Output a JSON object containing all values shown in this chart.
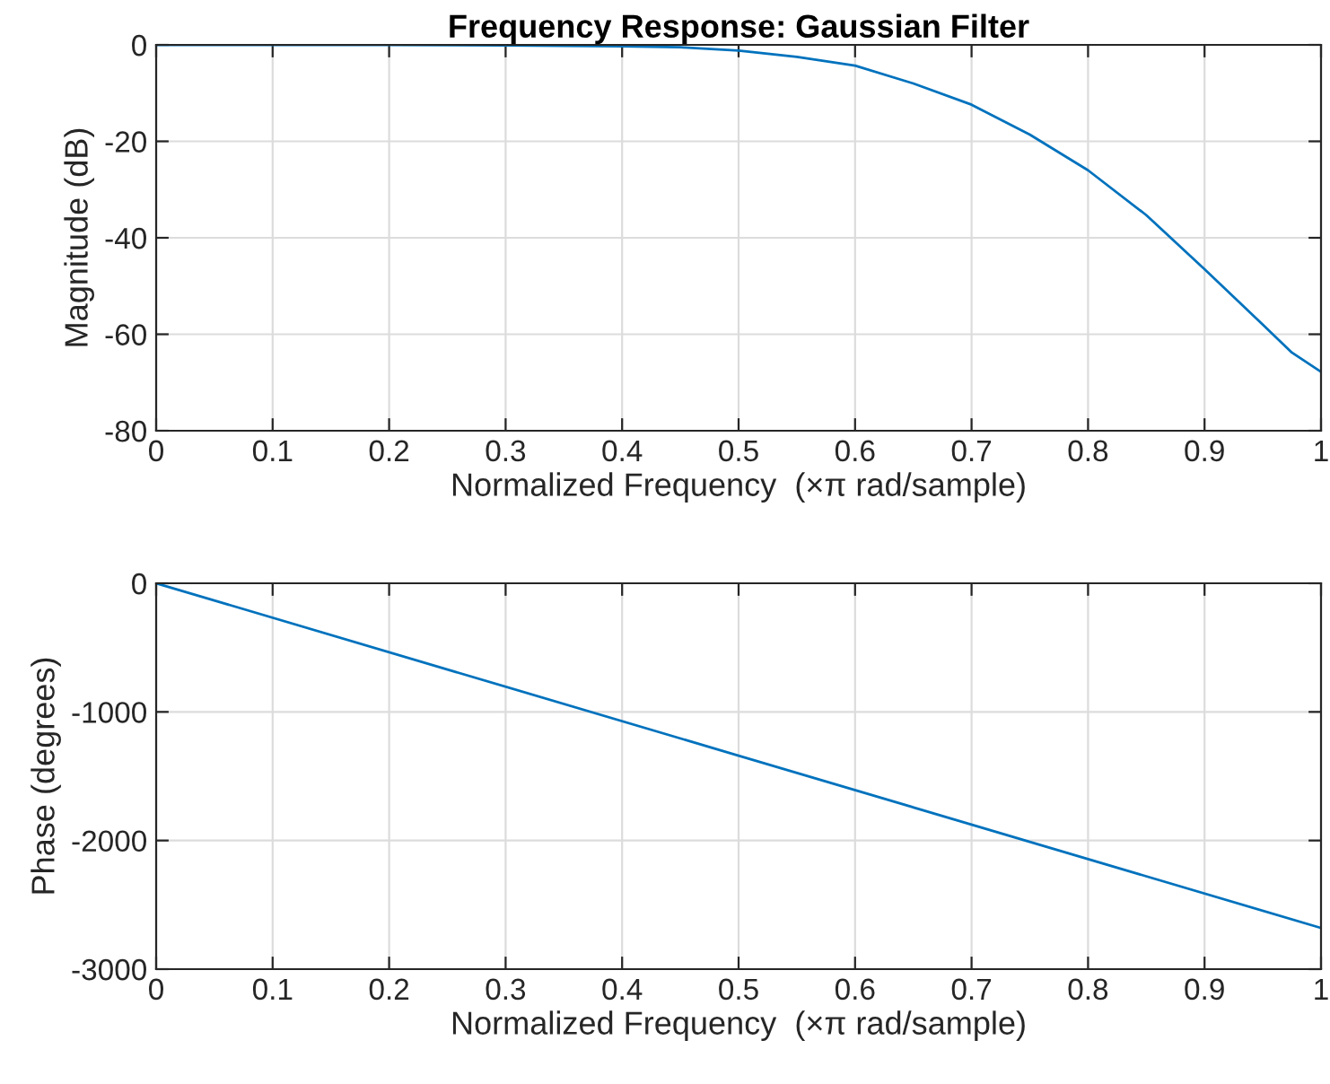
{
  "chart_data": [
    {
      "type": "line",
      "title": "Frequency Response: Gaussian Filter",
      "xlabel": "Normalized Frequency  (×π rad/sample)",
      "ylabel": "Magnitude (dB)",
      "x": [
        0,
        0.1,
        0.2,
        0.3,
        0.4,
        0.45,
        0.5,
        0.55,
        0.6,
        0.65,
        0.7,
        0.75,
        0.8,
        0.85,
        0.9,
        0.95,
        0.975,
        1.0
      ],
      "series": [
        {
          "color": "#0072bd",
          "values": [
            0,
            0,
            0,
            -0.1,
            -0.3,
            -0.5,
            -1.2,
            -2.5,
            -4.3,
            -8,
            -12.4,
            -18.6,
            -26,
            -35.3,
            -46.5,
            -58,
            -63.8,
            -67.8
          ]
        }
      ],
      "xlim": [
        0,
        1
      ],
      "xticks": [
        0,
        0.1,
        0.2,
        0.3,
        0.4,
        0.5,
        0.6,
        0.7,
        0.8,
        0.9,
        1
      ],
      "ylim": [
        -80,
        0
      ],
      "yticks": [
        -80,
        -60,
        -40,
        -20,
        0
      ],
      "grid": true,
      "line_style": "solid"
    },
    {
      "type": "line",
      "xlabel": "Normalized Frequency  (×π rad/sample)",
      "ylabel": "Phase (degrees)",
      "x": [
        0,
        0.5,
        1.0
      ],
      "series": [
        {
          "color": "#0072bd",
          "values": [
            0,
            -1340,
            -2680
          ]
        }
      ],
      "xlim": [
        0,
        1
      ],
      "xticks": [
        0,
        0.1,
        0.2,
        0.3,
        0.4,
        0.5,
        0.6,
        0.7,
        0.8,
        0.9,
        1
      ],
      "ylim": [
        -3000,
        0
      ],
      "yticks": [
        -3000,
        -2000,
        -1000,
        0
      ],
      "grid": true,
      "line_style": "solid"
    }
  ]
}
